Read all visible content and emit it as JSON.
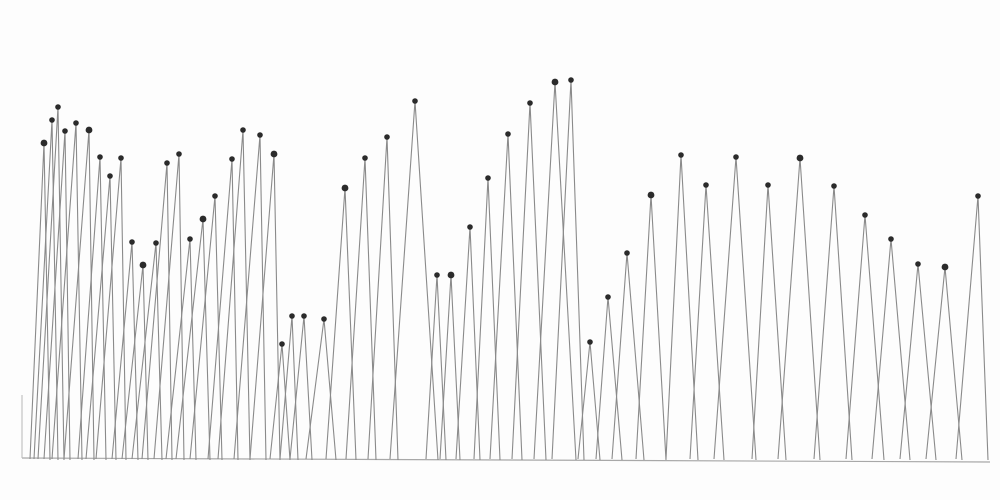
{
  "artwork": {
    "medium": "pencil-and-ink-drawing",
    "paper_color": "#fdfdfd",
    "line_color": "#8a8a8a",
    "dot_color": "#2b2b2b",
    "baseline_color": "#a8a8a8"
  }
}
